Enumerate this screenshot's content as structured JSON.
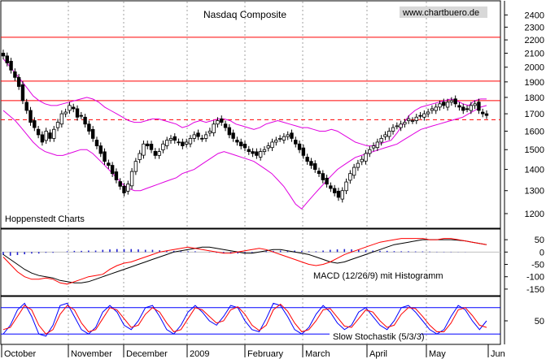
{
  "chart_data": [
    {
      "type": "candlestick",
      "panel": "price",
      "title": "Nasdaq Composite",
      "source_label": "www.chartbuero.de",
      "annotation": "Hoppenstedt Charts",
      "y_scale": "log",
      "ylim": [
        1150,
        2500
      ],
      "y_ticks": [
        1200,
        1300,
        1400,
        1500,
        1600,
        1700,
        1800,
        1900,
        2000,
        2100,
        2200,
        2300,
        2400
      ],
      "horizontal_lines": [
        {
          "value": 2220,
          "style": "solid",
          "color": "#ff0000"
        },
        {
          "value": 1905,
          "style": "solid",
          "color": "#ff0000"
        },
        {
          "value": 1780,
          "style": "solid",
          "color": "#ff0000"
        },
        {
          "value": 1665,
          "style": "dashed",
          "color": "#ff0000"
        }
      ],
      "close_series": [
        2080,
        2030,
        1980,
        1930,
        1870,
        1780,
        1720,
        1650,
        1620,
        1580,
        1540,
        1600,
        1560,
        1610,
        1650,
        1700,
        1710,
        1750,
        1730,
        1680,
        1690,
        1640,
        1600,
        1560,
        1520,
        1480,
        1440,
        1420,
        1380,
        1350,
        1320,
        1290,
        1330,
        1390,
        1440,
        1480,
        1530,
        1520,
        1500,
        1470,
        1490,
        1530,
        1550,
        1560,
        1550,
        1540,
        1520,
        1540,
        1560,
        1580,
        1570,
        1560,
        1580,
        1600,
        1640,
        1660,
        1650,
        1620,
        1580,
        1560,
        1540,
        1520,
        1510,
        1490,
        1480,
        1470,
        1490,
        1500,
        1520,
        1540,
        1550,
        1560,
        1570,
        1580,
        1560,
        1530,
        1500,
        1470,
        1440,
        1420,
        1400,
        1380,
        1350,
        1330,
        1310,
        1290,
        1270,
        1300,
        1340,
        1380,
        1410,
        1430,
        1450,
        1480,
        1500,
        1520,
        1540,
        1560,
        1580,
        1600,
        1620,
        1630,
        1640,
        1650,
        1670,
        1660,
        1680,
        1690,
        1700,
        1710,
        1730,
        1740,
        1760,
        1750,
        1770,
        1780,
        1760,
        1740,
        1720,
        1730,
        1750,
        1760,
        1720,
        1700,
        1690
      ],
      "upper_band": [
        2060,
        2010,
        1960,
        1910,
        1860,
        1810,
        1780,
        1760,
        1750,
        1750,
        1760,
        1770,
        1780,
        1790,
        1800,
        1790,
        1770,
        1740,
        1720,
        1700,
        1680,
        1660,
        1650,
        1650,
        1660,
        1670,
        1670,
        1660,
        1650,
        1640,
        1620,
        1630,
        1650,
        1660,
        1650,
        1660,
        1670,
        1670,
        1660,
        1640,
        1630,
        1620,
        1610,
        1620,
        1640,
        1650,
        1660,
        1650,
        1640,
        1630,
        1620,
        1620,
        1610,
        1600,
        1600,
        1610,
        1600,
        1580,
        1560,
        1540,
        1530,
        1520,
        1520,
        1530,
        1540,
        1550,
        1590,
        1640,
        1690,
        1720,
        1740,
        1750,
        1760,
        1770,
        1780,
        1790,
        1780,
        1760,
        1750,
        1780,
        1790,
        1790
      ],
      "lower_band": [
        1720,
        1690,
        1660,
        1620,
        1580,
        1540,
        1510,
        1490,
        1480,
        1470,
        1470,
        1480,
        1490,
        1500,
        1500,
        1480,
        1450,
        1420,
        1390,
        1360,
        1330,
        1310,
        1300,
        1300,
        1310,
        1320,
        1330,
        1340,
        1350,
        1360,
        1380,
        1390,
        1400,
        1420,
        1440,
        1460,
        1480,
        1490,
        1480,
        1470,
        1460,
        1450,
        1440,
        1420,
        1400,
        1380,
        1350,
        1320,
        1280,
        1240,
        1220,
        1250,
        1280,
        1310,
        1340,
        1370,
        1400,
        1420,
        1440,
        1460,
        1470,
        1480,
        1490,
        1500,
        1510,
        1520,
        1530,
        1550,
        1570,
        1590,
        1610,
        1620,
        1630,
        1640,
        1650,
        1660,
        1670,
        1680,
        1700,
        1720,
        1740,
        1750
      ]
    },
    {
      "type": "line",
      "panel": "macd",
      "label": "MACD (12/26/9) mit Histogramm",
      "ylim": [
        -170,
        80
      ],
      "y_ticks": [
        50,
        0,
        -50,
        -100,
        -150
      ],
      "series": [
        {
          "color": "#000000",
          "values": [
            -10,
            -30,
            -50,
            -70,
            -85,
            -95,
            -100,
            -105,
            -115,
            -120,
            -125,
            -125,
            -120,
            -110,
            -100,
            -90,
            -80,
            -70,
            -60,
            -50,
            -40,
            -30,
            -20,
            -10,
            0,
            5,
            10,
            15,
            20,
            20,
            15,
            10,
            5,
            0,
            -5,
            -5,
            0,
            5,
            10,
            10,
            5,
            0,
            -5,
            -10,
            -20,
            -30,
            -40,
            -45,
            -40,
            -30,
            -20,
            -10,
            0,
            10,
            20,
            30,
            35,
            40,
            45,
            50,
            50,
            50,
            50,
            50,
            48,
            45,
            40,
            35,
            30
          ]
        },
        {
          "color": "#ff0000",
          "values": [
            -20,
            -50,
            -80,
            -100,
            -110,
            -110,
            -105,
            -110,
            -125,
            -130,
            -120,
            -110,
            -100,
            -95,
            -90,
            -70,
            -55,
            -45,
            -40,
            -30,
            -20,
            -10,
            0,
            5,
            10,
            15,
            20,
            15,
            10,
            5,
            0,
            -5,
            -5,
            0,
            5,
            10,
            15,
            10,
            0,
            -10,
            -20,
            -30,
            -40,
            -50,
            -55,
            -50,
            -40,
            -25,
            -10,
            0,
            10,
            20,
            30,
            40,
            45,
            50,
            55,
            55,
            55,
            55,
            50,
            50,
            55,
            55,
            50,
            45,
            40,
            35,
            30
          ]
        }
      ],
      "histogram": [
        -20,
        -25,
        -20,
        -15,
        -10,
        -10,
        -5,
        -5,
        0,
        5,
        8,
        8,
        10,
        10,
        15,
        18,
        20,
        20,
        20,
        18,
        15,
        15,
        12,
        10,
        8,
        5,
        5,
        5,
        0,
        -2,
        -5,
        -8,
        -10,
        -10,
        -8,
        -5,
        0,
        5,
        8,
        10,
        10,
        10,
        8,
        5,
        5,
        10,
        15,
        18,
        20,
        18,
        15,
        12,
        10,
        8,
        8,
        6,
        5,
        5,
        4,
        4,
        3,
        2,
        2,
        2,
        1,
        1,
        0,
        0,
        0
      ]
    },
    {
      "type": "line",
      "panel": "stochastic",
      "label": "Slow Stochastik (5/3/3)",
      "ylim": [
        0,
        100
      ],
      "y_ticks": [
        50
      ],
      "horizontal_lines": [
        {
          "value": 80,
          "color": "#0000ff"
        },
        {
          "value": 20,
          "color": "#0000ff"
        }
      ],
      "series": [
        {
          "color": "#0000ff",
          "values": [
            20,
            40,
            75,
            90,
            60,
            20,
            15,
            40,
            85,
            90,
            60,
            30,
            20,
            35,
            70,
            85,
            70,
            40,
            30,
            50,
            80,
            85,
            60,
            30,
            20,
            40,
            70,
            85,
            70,
            50,
            40,
            60,
            85,
            80,
            50,
            30,
            25,
            55,
            90,
            85,
            60,
            30,
            20,
            35,
            65,
            85,
            70,
            45,
            30,
            40,
            70,
            80,
            60,
            40,
            30,
            50,
            80,
            85,
            70,
            50,
            30,
            20,
            30,
            60,
            85,
            75,
            50,
            30,
            50
          ]
        },
        {
          "color": "#ff0000",
          "values": [
            30,
            35,
            60,
            85,
            75,
            40,
            20,
            30,
            65,
            85,
            75,
            45,
            25,
            30,
            55,
            80,
            75,
            55,
            35,
            40,
            65,
            80,
            70,
            45,
            25,
            30,
            55,
            80,
            75,
            60,
            45,
            50,
            75,
            82,
            65,
            40,
            28,
            40,
            75,
            88,
            72,
            45,
            25,
            30,
            50,
            75,
            78,
            58,
            38,
            35,
            55,
            75,
            70,
            50,
            35,
            40,
            65,
            80,
            78,
            60,
            40,
            25,
            25,
            45,
            75,
            80,
            62,
            40,
            35
          ]
        }
      ]
    }
  ],
  "x_axis": {
    "labels": [
      "October",
      "November",
      "December",
      "2009",
      "February",
      "March",
      "April",
      "May",
      "Jun"
    ]
  }
}
